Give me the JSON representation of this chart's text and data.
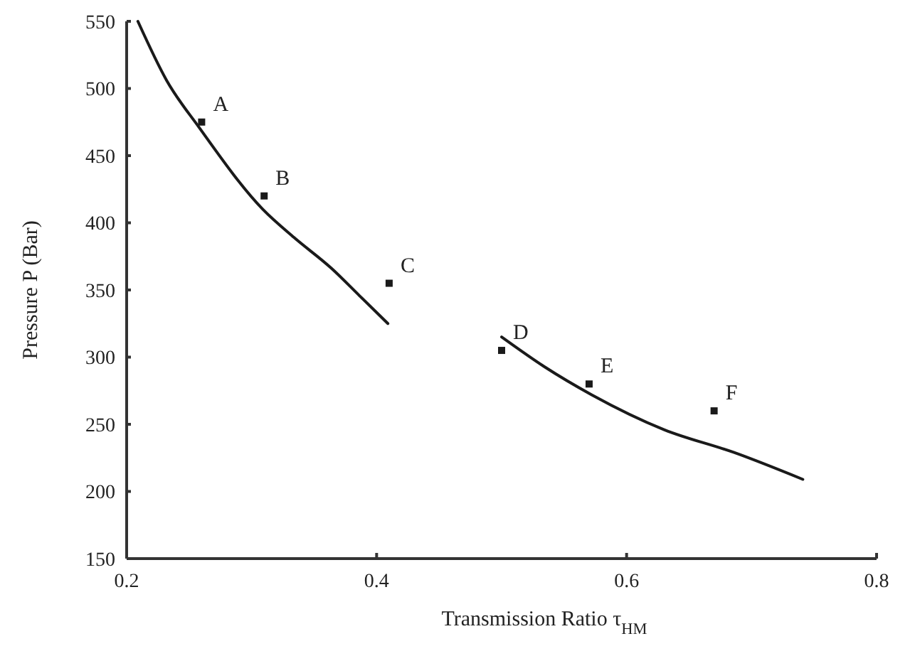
{
  "chart_data": {
    "type": "line",
    "xlabel": "Transmission Ratio τ$_{HM}$",
    "ylabel": "Pressure P (Bar)",
    "xlim": [
      0.2,
      0.8
    ],
    "xticks": [
      0.2,
      0.4,
      0.6,
      0.8
    ],
    "ylim": [
      150,
      550
    ],
    "yticks": [
      150,
      200,
      250,
      300,
      350,
      400,
      450,
      500,
      550
    ],
    "grid": false,
    "series": [
      {
        "color": "#1a1a1a",
        "marker": "none",
        "x": [
          0.209,
          0.232,
          0.258,
          0.309,
          0.334,
          0.364,
          0.386,
          0.409
        ],
        "values": [
          550,
          506,
          471,
          410,
          389,
          366,
          346,
          325
        ]
      },
      {
        "color": "#1a1a1a",
        "marker": "none",
        "x": [
          0.5,
          0.534,
          0.572,
          0.63,
          0.686,
          0.741
        ],
        "values": [
          315,
          293,
          272,
          246,
          229,
          209
        ]
      },
      {
        "type": "scatter",
        "color": "#1a1a1a",
        "marker": "square",
        "x": [
          0.26,
          0.31,
          0.41,
          0.5,
          0.57,
          0.67
        ],
        "values": [
          475,
          420,
          355,
          305,
          280,
          260
        ]
      }
    ],
    "annotations": [
      {
        "text": "A",
        "x": 0.26,
        "y": 475
      },
      {
        "text": "B",
        "x": 0.31,
        "y": 420
      },
      {
        "text": "C",
        "x": 0.41,
        "y": 355
      },
      {
        "text": "D",
        "x": 0.5,
        "y": 305
      },
      {
        "text": "E",
        "x": 0.57,
        "y": 280
      },
      {
        "text": "F",
        "x": 0.67,
        "y": 260
      }
    ]
  }
}
